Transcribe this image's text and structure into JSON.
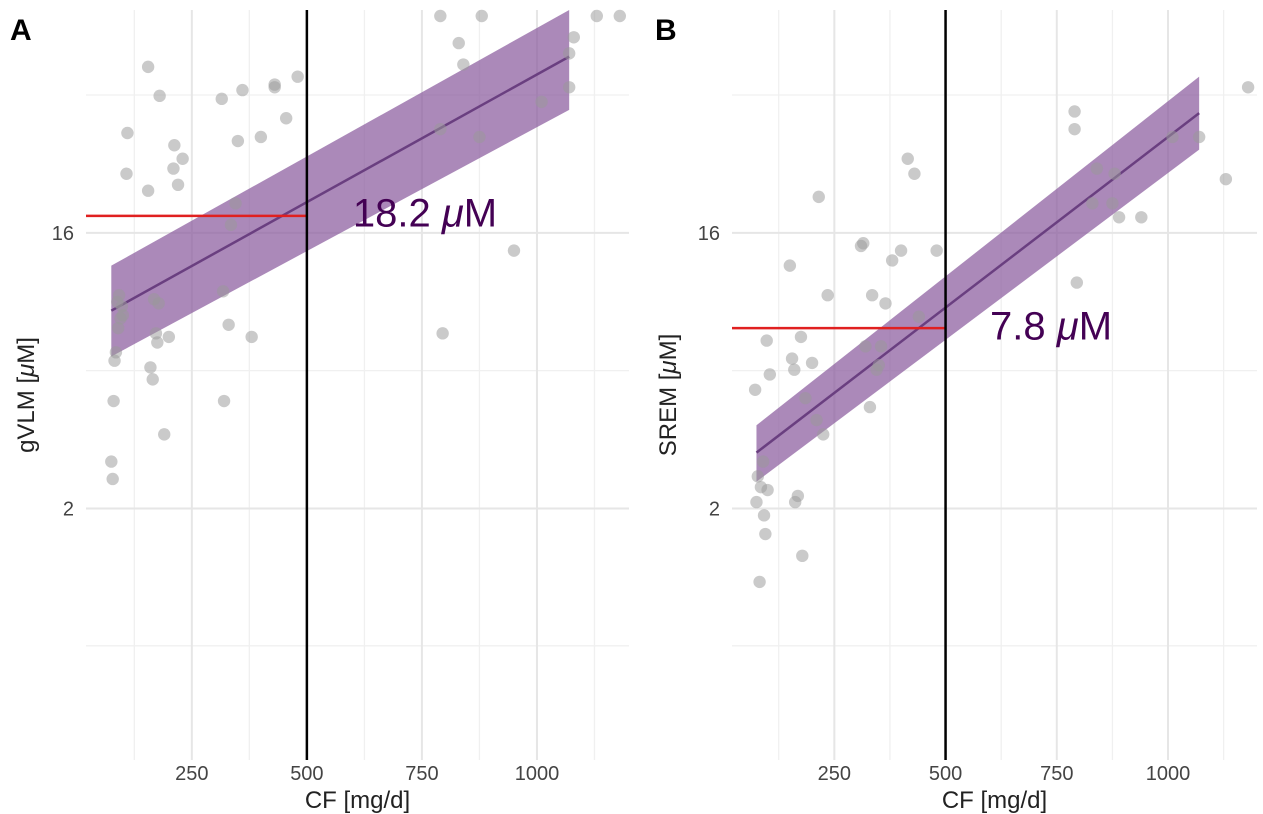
{
  "colors": {
    "ribbon": "#8b5c9e",
    "fit_line": "#6a3f80",
    "points": "#9a9a9a",
    "threshold_hline": "#e02020",
    "vline": "#000000",
    "annotation": "#440154"
  },
  "chart_data": [
    {
      "type": "scatter",
      "panel_label": "A",
      "xlabel": "CF [mg/d]",
      "ylabel_prefix": "gVLM [",
      "ylabel_mu": "μ",
      "ylabel_suffix": "M]",
      "y_scale": "log2",
      "xlim": [
        20,
        1200
      ],
      "ylim": [
        0.3,
        86
      ],
      "x_ticks": [
        250,
        500,
        750,
        1000
      ],
      "x_tick_labels": [
        "250",
        "500",
        "750",
        "1000"
      ],
      "y_ticks": [
        2,
        16
      ],
      "y_tick_labels": [
        "2",
        "16"
      ],
      "y_minor_gridlines": [
        0.71,
        5.66,
        45.3
      ],
      "grid": true,
      "vline_x": 500,
      "threshold": {
        "x_from": 20,
        "x_to": 500,
        "y": 18.2
      },
      "annotation": {
        "number": "18.2 ",
        "mu": "μ",
        "unit": "M",
        "x": 600,
        "y": 18.5
      },
      "fit": {
        "x": [
          75,
          1070
        ],
        "y": [
          8.9,
          60.5
        ]
      },
      "ribbon": {
        "x": [
          75,
          1070
        ],
        "upper": [
          12.5,
          86
        ],
        "lower": [
          6.3,
          40.5
        ]
      },
      "points": {
        "x": [
          75,
          78,
          80,
          82,
          85,
          88,
          90,
          92,
          95,
          98,
          100,
          108,
          110,
          155,
          155,
          160,
          165,
          168,
          172,
          175,
          178,
          180,
          190,
          200,
          210,
          212,
          220,
          230,
          315,
          318,
          320,
          330,
          335,
          345,
          350,
          360,
          380,
          400,
          430,
          430,
          455,
          480,
          790,
          790,
          795,
          830,
          840,
          875,
          880,
          950,
          1010,
          1070,
          1070,
          1080,
          1130,
          1180
        ],
        "y": [
          2.85,
          2.5,
          4.5,
          6.1,
          6.5,
          9.5,
          7.8,
          10,
          8.4,
          9.2,
          8.6,
          25,
          34,
          56,
          22,
          5.8,
          5.3,
          9.7,
          7.5,
          7,
          9.4,
          45,
          3.5,
          7.3,
          26,
          31,
          23,
          28,
          44,
          10.3,
          4.5,
          8,
          17,
          20,
          32,
          47,
          7.3,
          33,
          48,
          49,
          38,
          52,
          35,
          90,
          7.5,
          67,
          57,
          33,
          88,
          14,
          43,
          48,
          62,
          70,
          100,
          98
        ]
      }
    },
    {
      "type": "scatter",
      "panel_label": "B",
      "xlabel": "CF [mg/d]",
      "ylabel_prefix": "SREM [",
      "ylabel_mu": "μ",
      "ylabel_suffix": "M]",
      "y_scale": "log2",
      "xlim": [
        20,
        1200
      ],
      "ylim": [
        0.3,
        86
      ],
      "x_ticks": [
        250,
        500,
        750,
        1000
      ],
      "x_tick_labels": [
        "250",
        "500",
        "750",
        "1000"
      ],
      "y_ticks": [
        2,
        16
      ],
      "y_tick_labels": [
        "2",
        "16"
      ],
      "y_minor_gridlines": [
        0.71,
        5.66,
        45.3
      ],
      "grid": true,
      "vline_x": 500,
      "threshold": {
        "x_from": 20,
        "x_to": 500,
        "y": 7.8
      },
      "annotation": {
        "number": "7.8 ",
        "mu": "μ",
        "unit": "M",
        "x": 600,
        "y": 7.9
      },
      "fit": {
        "x": [
          75,
          1070
        ],
        "y": [
          3.05,
          39.5
        ]
      },
      "ribbon": {
        "x": [
          75,
          1070
        ],
        "upper": [
          3.75,
          52
        ],
        "lower": [
          2.45,
          30
        ]
      },
      "points": {
        "x": [
          72,
          75,
          78,
          82,
          85,
          90,
          92,
          95,
          98,
          100,
          105,
          150,
          155,
          160,
          162,
          168,
          175,
          178,
          185,
          200,
          210,
          215,
          225,
          235,
          310,
          315,
          320,
          330,
          335,
          345,
          350,
          355,
          365,
          380,
          400,
          415,
          430,
          440,
          480,
          790,
          790,
          795,
          830,
          840,
          875,
          880,
          890,
          940,
          1010,
          1070,
          1130,
          1180
        ],
        "y": [
          4.9,
          2.1,
          2.55,
          1.15,
          2.35,
          2.85,
          1.9,
          1.65,
          7.1,
          2.3,
          5.5,
          12.5,
          6.2,
          5.7,
          2.1,
          2.2,
          7.3,
          1.4,
          4.6,
          6,
          3.9,
          21,
          3.5,
          10,
          14.5,
          14.8,
          6.8,
          4.3,
          10,
          5.7,
          5.9,
          6.8,
          9.4,
          13,
          14,
          28,
          25,
          8.5,
          14,
          40,
          35,
          11,
          20,
          26,
          20,
          25,
          18,
          18,
          33,
          33,
          24,
          48
        ]
      }
    }
  ]
}
